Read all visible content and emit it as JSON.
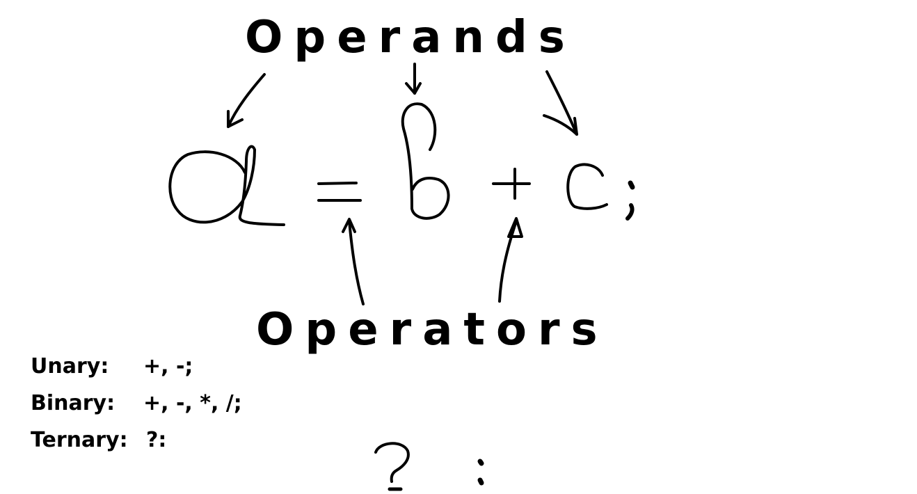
{
  "headings": {
    "operands": "Operands",
    "operators": "Operators"
  },
  "equation": {
    "left_operand": "a",
    "assign_operator": "=",
    "middle_operand": "b",
    "plus_operator": "+",
    "right_operand": "c",
    "terminator": ";"
  },
  "operator_kinds": [
    {
      "label": "Unary:",
      "examples": "+, -;"
    },
    {
      "label": "Binary:",
      "examples": "+, -, *, /;"
    },
    {
      "label": "Ternary:",
      "examples": "?:"
    }
  ],
  "ternary_symbols": {
    "question": "?",
    "colon": ":"
  },
  "colors": {
    "ink": "#000000",
    "background": "#ffffff"
  }
}
